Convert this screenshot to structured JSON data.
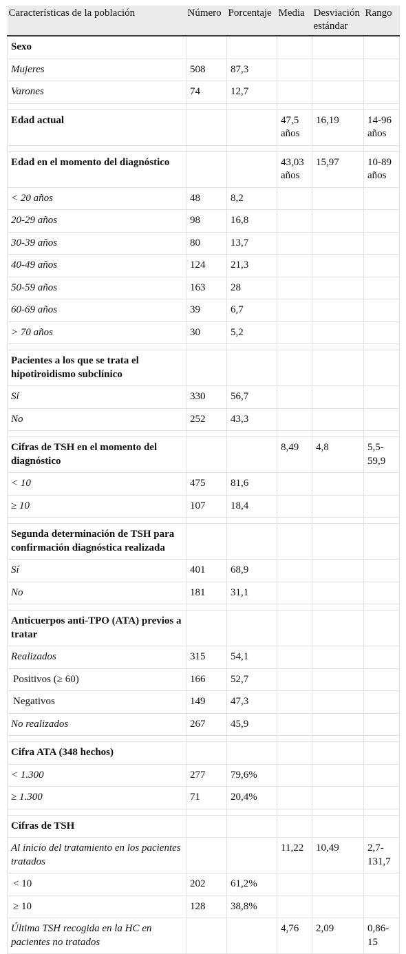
{
  "table": {
    "header": [
      "Características de la población",
      "Número",
      "Porcentaje",
      "Media",
      "Desviación estándar",
      "Rango"
    ],
    "sections": [
      {
        "title": "Sexo",
        "rows": [
          {
            "label": "Mujeres",
            "numero": "508",
            "porcentaje": "87,3"
          },
          {
            "label": "Varones",
            "numero": "74",
            "porcentaje": "12,7"
          }
        ]
      },
      {
        "title": "Edad actual",
        "media": "47,5 años",
        "desviacion": "16,19",
        "rango": "14-96 años",
        "rows": []
      },
      {
        "title": "Edad en el momento del diagnóstico",
        "media": "43,03 años",
        "desviacion": "15,97",
        "rango": "10-89 años",
        "rows": [
          {
            "label": "< 20 años",
            "numero": "48",
            "porcentaje": "8,2"
          },
          {
            "label": "20-29 años",
            "numero": "98",
            "porcentaje": "16,8"
          },
          {
            "label": "30-39 años",
            "numero": "80",
            "porcentaje": "13,7"
          },
          {
            "label": "40-49 años",
            "numero": "124",
            "porcentaje": "21,3"
          },
          {
            "label": "50-59 años",
            "numero": "163",
            "porcentaje": "28"
          },
          {
            "label": "60-69 años",
            "numero": "39",
            "porcentaje": "6,7"
          },
          {
            "label": "> 70 años",
            "numero": "30",
            "porcentaje": "5,2"
          }
        ]
      },
      {
        "title": "Pacientes a los que se trata el hipotiroidismo subclínico",
        "rows": [
          {
            "label": "Sí",
            "numero": "330",
            "porcentaje": "56,7"
          },
          {
            "label": "No",
            "numero": "252",
            "porcentaje": "43,3"
          }
        ]
      },
      {
        "title": "Cifras de TSH en el momento del diagnóstico",
        "media": "8,49",
        "desviacion": "4,8",
        "rango": "5,5-59,9",
        "rows": [
          {
            "label": "< 10",
            "numero": "475",
            "porcentaje": "81,6"
          },
          {
            "label": "≥ 10",
            "numero": "107",
            "porcentaje": "18,4"
          }
        ]
      },
      {
        "title": "Segunda determinación de TSH para confirmación diagnóstica realizada",
        "rows": [
          {
            "label": "Sí",
            "numero": "401",
            "porcentaje": "68,9"
          },
          {
            "label": "No",
            "numero": "181",
            "porcentaje": "31,1"
          }
        ]
      },
      {
        "title": "Anticuerpos anti-TPO (ATA) previos a tratar",
        "rows": [
          {
            "label": "Realizados",
            "numero": "315",
            "porcentaje": "54,1"
          },
          {
            "label": "Positivos (≥ 60)",
            "numero": "166",
            "porcentaje": "52,7",
            "indent": true
          },
          {
            "label": "Negativos",
            "numero": "149",
            "porcentaje": "47,3",
            "indent": true
          },
          {
            "label": "No realizados",
            "numero": "267",
            "porcentaje": "45,9"
          }
        ]
      },
      {
        "title": "Cifra ATA (348 hechos)",
        "rows": [
          {
            "label": "< 1.300",
            "numero": "277",
            "porcentaje": "79,6%"
          },
          {
            "label": "≥ 1.300",
            "numero": "71",
            "porcentaje": "20,4%"
          }
        ]
      },
      {
        "title": "Cifras de TSH",
        "rows": [
          {
            "label": "Al inicio del tratamiento en los pacientes tratados",
            "media": "11,22",
            "desviacion": "10,49",
            "rango": "2,7-131,7"
          },
          {
            "label": "< 10",
            "numero": "202",
            "porcentaje": "61,2%",
            "indent": true
          },
          {
            "label": "≥ 10",
            "numero": "128",
            "porcentaje": "38,8%",
            "indent": true
          },
          {
            "label": "Última TSH recogida en la HC en pacientes no tratados",
            "media": "4,76",
            "desviacion": "2,09",
            "rango": "0,86-15"
          }
        ]
      }
    ]
  }
}
